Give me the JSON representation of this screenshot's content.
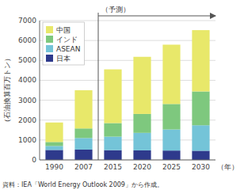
{
  "chart_data": {
    "type": "bar",
    "stacked": true,
    "categories": [
      "1990",
      "2007",
      "2015",
      "2020",
      "2025",
      "2030"
    ],
    "series": [
      {
        "name": "日本",
        "color": "#2e3a8c",
        "values": [
          500,
          520,
          490,
          480,
          470,
          460
        ]
      },
      {
        "name": "ASEAN",
        "color": "#74c4d8",
        "values": [
          200,
          580,
          680,
          880,
          1060,
          1280
        ]
      },
      {
        "name": "インド",
        "color": "#7ec87e",
        "values": [
          200,
          480,
          680,
          950,
          1280,
          1700
        ]
      },
      {
        "name": "中国",
        "color": "#e8e86a",
        "values": [
          980,
          1920,
          2700,
          2870,
          2980,
          3080
        ]
      }
    ],
    "y_label": "（石油換算百万トン）",
    "x_label": "（年）",
    "ylim": [
      0,
      7000
    ],
    "yticks": [
      0,
      1000,
      2000,
      3000,
      4000,
      5000,
      6000,
      7000
    ],
    "grid": true,
    "legend": "upper left",
    "annotations": [
      "（予測）"
    ],
    "source": "資料：IEA「World Energy Outlook 2009」から作成。"
  }
}
